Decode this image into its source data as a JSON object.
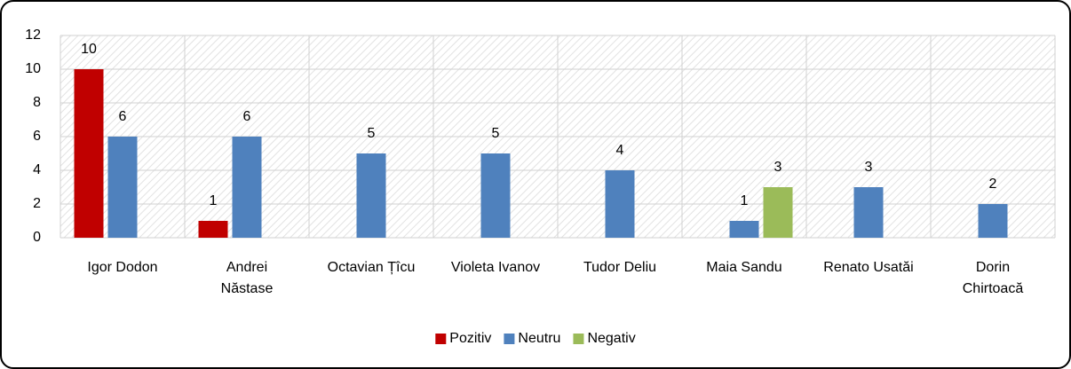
{
  "chart_data": {
    "type": "bar",
    "categories": [
      "Igor Dodon",
      "Andrei\nNăstase",
      "Octavian Țîcu",
      "Violeta Ivanov",
      "Tudor Deliu",
      "Maia Sandu",
      "Renato Usatăi",
      "Dorin\nChirtoacă"
    ],
    "series": [
      {
        "name": "Pozitiv",
        "color": "#c00000",
        "values": [
          10,
          1,
          null,
          null,
          null,
          null,
          null,
          null
        ]
      },
      {
        "name": "Neutru",
        "color": "#4f81bd",
        "values": [
          6,
          6,
          5,
          5,
          4,
          1,
          3,
          2
        ]
      },
      {
        "name": "Negativ",
        "color": "#9bbb59",
        "values": [
          null,
          null,
          null,
          null,
          null,
          3,
          null,
          null
        ]
      }
    ],
    "ylim": [
      0,
      12
    ],
    "yticks": [
      0,
      2,
      4,
      6,
      8,
      10,
      12
    ],
    "grid": true,
    "legend": "bottom"
  }
}
